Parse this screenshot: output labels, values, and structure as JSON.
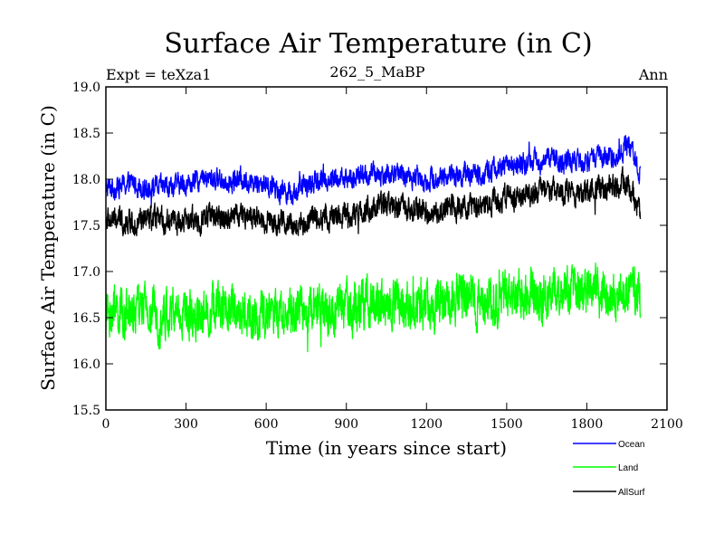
{
  "chart_data": {
    "type": "line",
    "title": "Surface Air Temperature (in C)",
    "subtitle_left": "Expt = teXza1",
    "subtitle_center": "262_5_MaBP",
    "subtitle_right": "Ann",
    "xlabel": "Time (in years since start)",
    "ylabel": "Surface Air Temperature (in C)",
    "xlim": [
      0,
      2100
    ],
    "ylim": [
      15.5,
      19.0
    ],
    "xticks": [
      0,
      300,
      600,
      900,
      1200,
      1500,
      1800,
      2100
    ],
    "yticks": [
      15.5,
      16.0,
      16.5,
      17.0,
      17.5,
      18.0,
      18.5,
      19.0
    ],
    "x_end": 2000,
    "series": [
      {
        "name": "Ocean",
        "color": "#0000ff",
        "anchors": [
          [
            0,
            17.9
          ],
          [
            100,
            17.95
          ],
          [
            200,
            17.9
          ],
          [
            300,
            17.95
          ],
          [
            400,
            18.0
          ],
          [
            500,
            18.0
          ],
          [
            600,
            17.95
          ],
          [
            700,
            17.85
          ],
          [
            800,
            18.0
          ],
          [
            900,
            18.0
          ],
          [
            1000,
            18.05
          ],
          [
            1100,
            18.05
          ],
          [
            1200,
            18.0
          ],
          [
            1300,
            18.05
          ],
          [
            1400,
            18.05
          ],
          [
            1500,
            18.15
          ],
          [
            1600,
            18.2
          ],
          [
            1700,
            18.2
          ],
          [
            1800,
            18.2
          ],
          [
            1900,
            18.25
          ],
          [
            1950,
            18.35
          ],
          [
            2000,
            18.1
          ]
        ],
        "noise_amplitude": 0.09
      },
      {
        "name": "Land",
        "color": "#00ff00",
        "anchors": [
          [
            0,
            16.55
          ],
          [
            100,
            16.55
          ],
          [
            200,
            16.55
          ],
          [
            300,
            16.55
          ],
          [
            400,
            16.6
          ],
          [
            500,
            16.6
          ],
          [
            600,
            16.5
          ],
          [
            700,
            16.55
          ],
          [
            800,
            16.6
          ],
          [
            900,
            16.6
          ],
          [
            1000,
            16.65
          ],
          [
            1100,
            16.65
          ],
          [
            1200,
            16.6
          ],
          [
            1300,
            16.7
          ],
          [
            1400,
            16.7
          ],
          [
            1500,
            16.7
          ],
          [
            1600,
            16.8
          ],
          [
            1700,
            16.75
          ],
          [
            1800,
            16.75
          ],
          [
            1900,
            16.8
          ],
          [
            2000,
            16.75
          ]
        ],
        "noise_amplitude": 0.2
      },
      {
        "name": "AllSurf",
        "color": "#000000",
        "anchors": [
          [
            0,
            17.55
          ],
          [
            100,
            17.55
          ],
          [
            200,
            17.55
          ],
          [
            300,
            17.55
          ],
          [
            400,
            17.6
          ],
          [
            500,
            17.6
          ],
          [
            600,
            17.55
          ],
          [
            700,
            17.5
          ],
          [
            800,
            17.6
          ],
          [
            900,
            17.6
          ],
          [
            1000,
            17.7
          ],
          [
            1100,
            17.7
          ],
          [
            1200,
            17.65
          ],
          [
            1300,
            17.7
          ],
          [
            1400,
            17.7
          ],
          [
            1500,
            17.8
          ],
          [
            1600,
            17.85
          ],
          [
            1700,
            17.85
          ],
          [
            1800,
            17.85
          ],
          [
            1900,
            17.9
          ],
          [
            1950,
            17.95
          ],
          [
            2000,
            17.65
          ]
        ],
        "noise_amplitude": 0.1
      }
    ]
  }
}
